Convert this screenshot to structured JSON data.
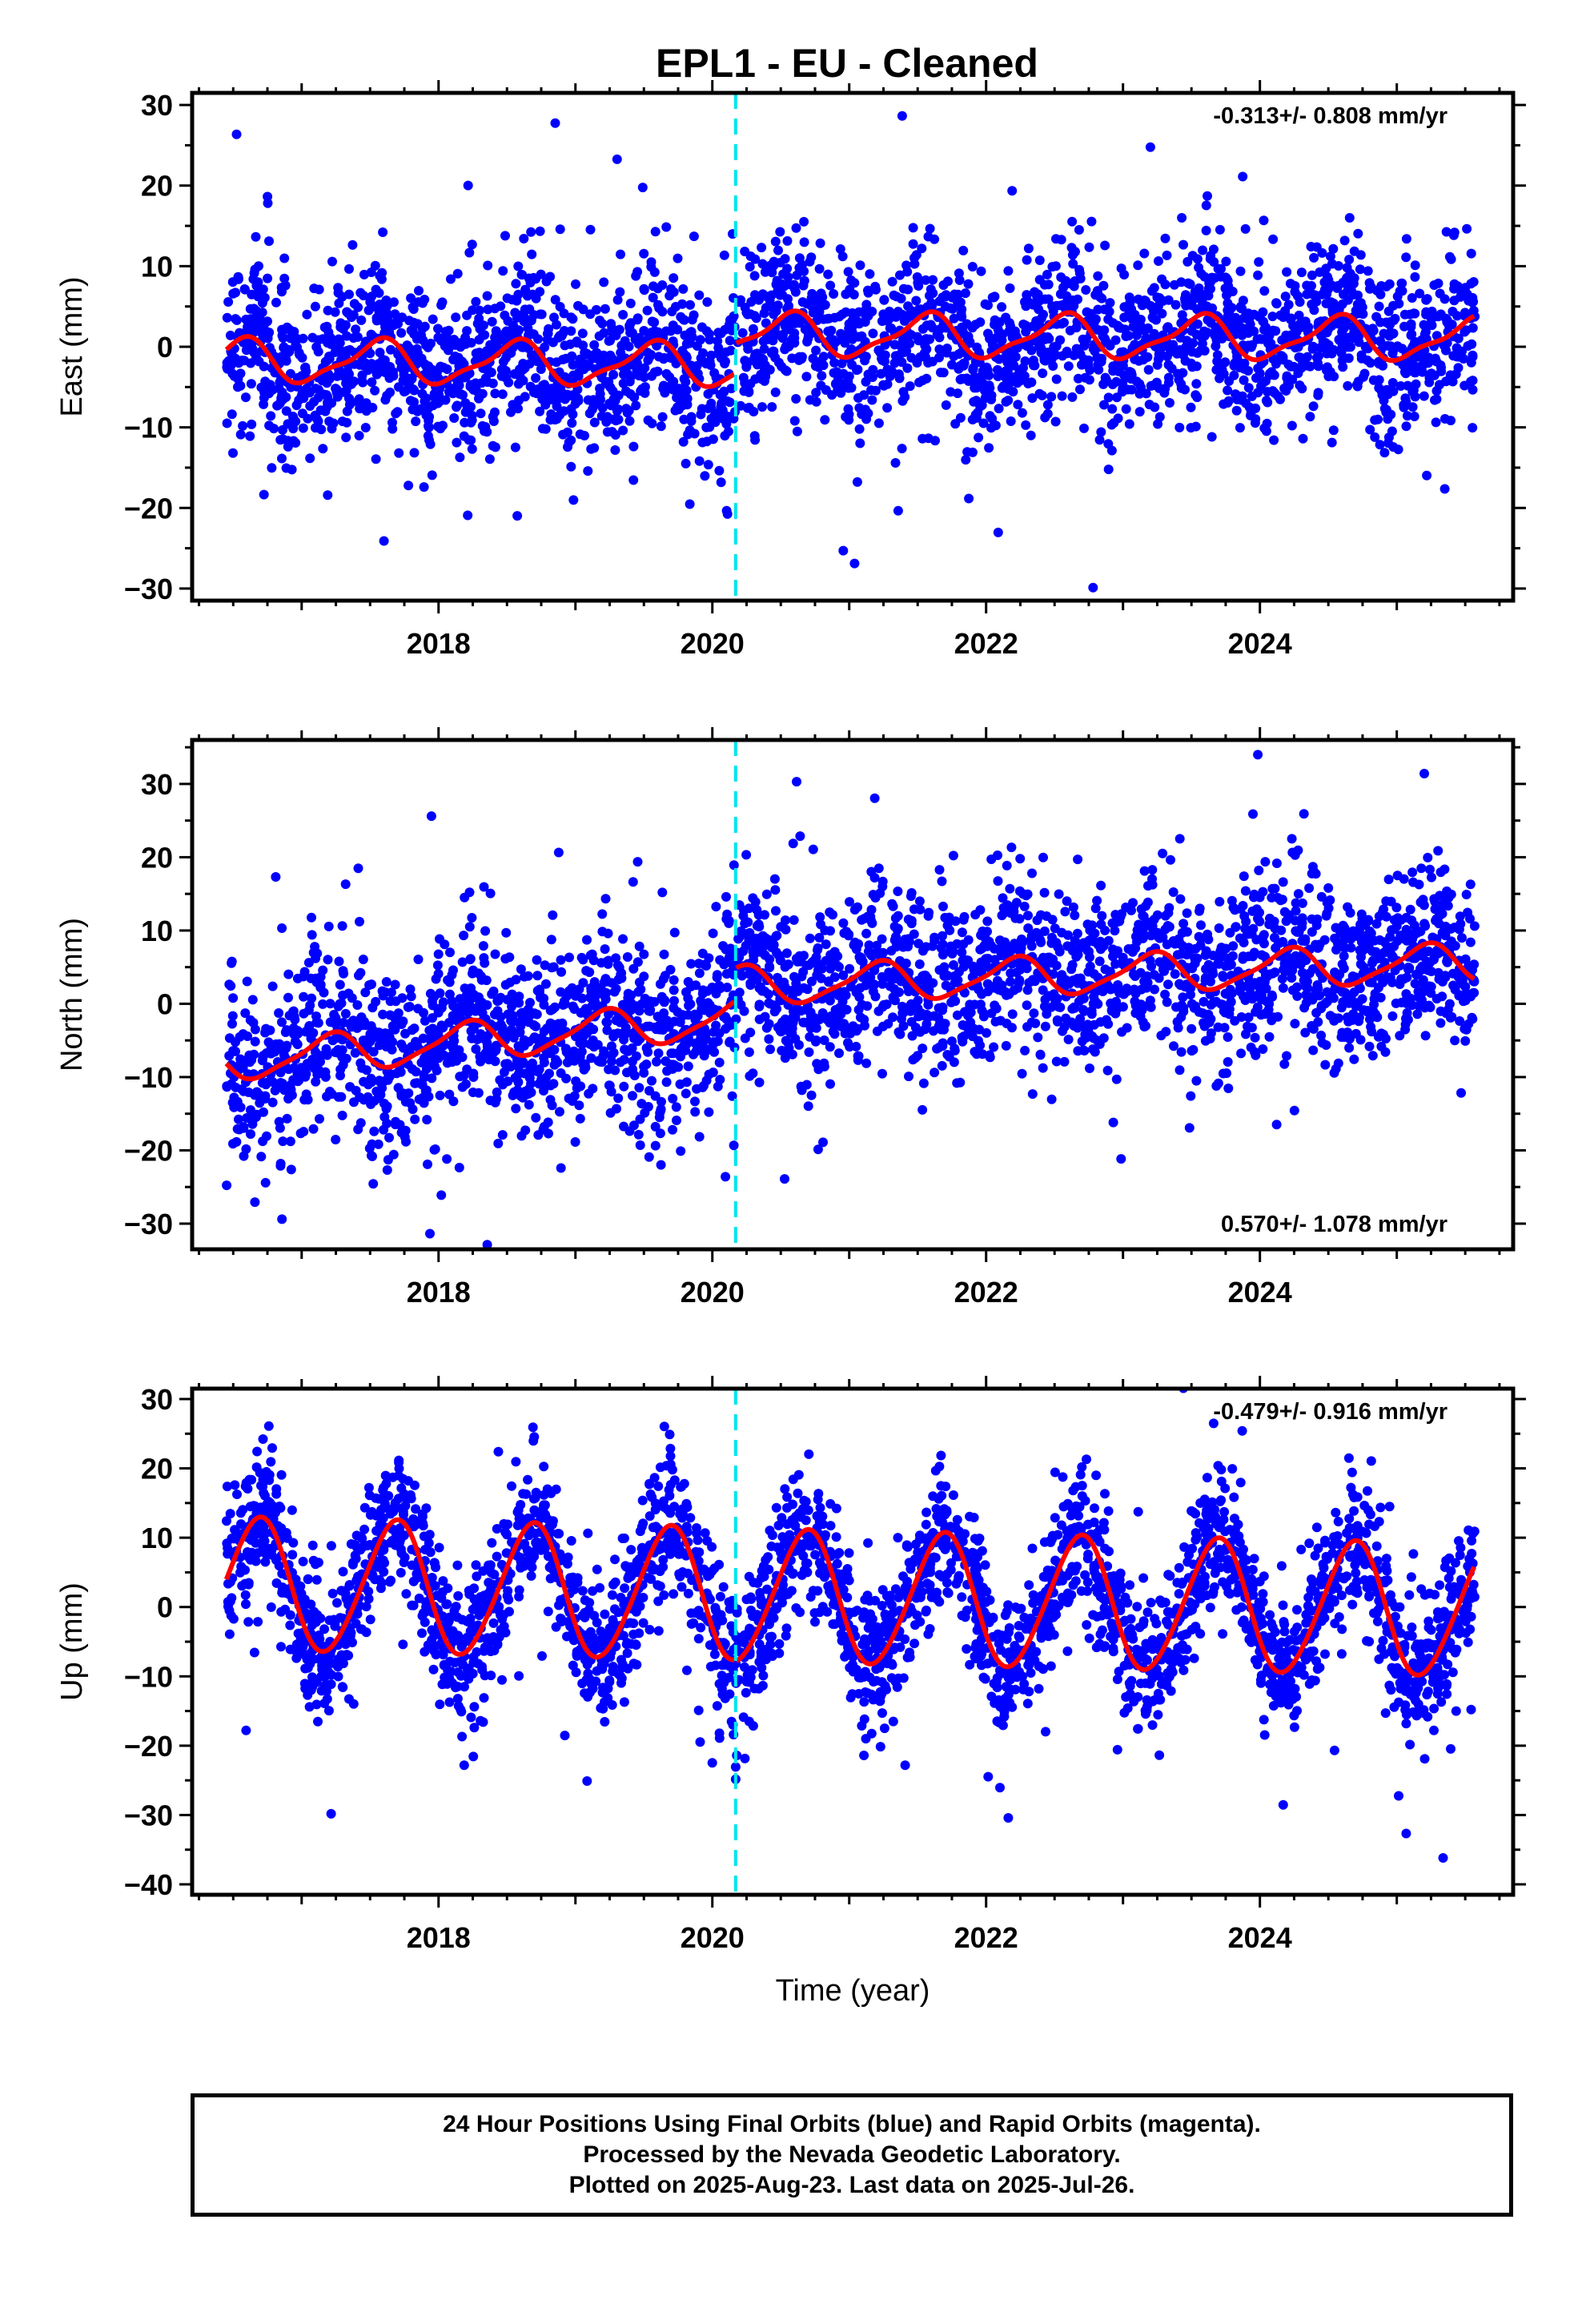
{
  "title": "EPL1  - EU - Cleaned",
  "colors": {
    "data": "#0000ff",
    "model": "#ff0000",
    "break": "#00e5ee",
    "frame": "#000000"
  },
  "chart_data": [
    {
      "type": "scatter",
      "panel": "east",
      "ylabel": "East (mm)",
      "xlabel": "",
      "xlim": [
        2016.2,
        2025.85
      ],
      "ylim": [
        -31.5,
        31.5
      ],
      "yticks": [
        -30,
        -20,
        -10,
        0,
        10,
        20,
        30
      ],
      "xticks": [
        2018,
        2020,
        2022,
        2024
      ],
      "grid": false,
      "rate": "-0.313+/- 0.808 mm/yr",
      "rate_position": "top-right",
      "break_epoch": 2020.17,
      "data_start": 2016.45,
      "data_end": 2025.57,
      "fit_model": {
        "mean_before_break": -2.0,
        "trend_before": -0.15,
        "offset_at_break": 3.5,
        "mean_after_break": 1.2,
        "trend_after": -0.1,
        "annual_amp": 2.5,
        "annual_phase": 0.55,
        "semiannual_amp": 0.8
      },
      "scatter_sigma": 5.0
    },
    {
      "type": "scatter",
      "panel": "north",
      "ylabel": "North (mm)",
      "xlabel": "",
      "xlim": [
        2016.2,
        2025.85
      ],
      "ylim": [
        -33.5,
        36
      ],
      "yticks": [
        -30,
        -20,
        -10,
        0,
        10,
        20,
        30
      ],
      "xticks": [
        2018,
        2020,
        2022,
        2024
      ],
      "grid": false,
      "rate": "0.570+/- 1.078 mm/yr",
      "rate_position": "bottom-right",
      "break_epoch": 2020.17,
      "data_start": 2016.45,
      "data_end": 2025.57,
      "fit_model": {
        "mean_before_break": -5.0,
        "trend_before": 1.6,
        "offset_at_break": 4.0,
        "mean_after_break": 4.0,
        "trend_after": 0.6,
        "annual_amp": 2.5,
        "annual_phase": 0.2,
        "semiannual_amp": 0.6
      },
      "scatter_sigma": 6.0
    },
    {
      "type": "scatter",
      "panel": "up",
      "ylabel": "Up (mm)",
      "xlabel": "Time (year)",
      "xlim": [
        2016.2,
        2025.85
      ],
      "ylim": [
        -41.5,
        31.5
      ],
      "yticks": [
        -40,
        -30,
        -20,
        -10,
        0,
        10,
        20,
        30
      ],
      "xticks": [
        2018,
        2020,
        2022,
        2024
      ],
      "grid": false,
      "rate": "-0.479+/- 0.916 mm/yr",
      "rate_position": "top-right",
      "break_epoch": 2020.17,
      "data_start": 2016.45,
      "data_end": 2025.57,
      "fit_model": {
        "mean_before_break": 2.5,
        "trend_before": -0.4,
        "offset_at_break": 0.0,
        "mean_after_break": 0.5,
        "trend_after": -0.4,
        "annual_amp": 9.5,
        "annual_phase": 0.68,
        "semiannual_amp": 0.8
      },
      "scatter_sigma": 5.0
    }
  ],
  "footer": {
    "line1": "24 Hour Positions Using Final Orbits (blue) and Rapid Orbits (magenta).",
    "line2": "Processed by the Nevada Geodetic Laboratory.",
    "line3": "Plotted on 2025-Aug-23. Last data on 2025-Jul-26."
  }
}
